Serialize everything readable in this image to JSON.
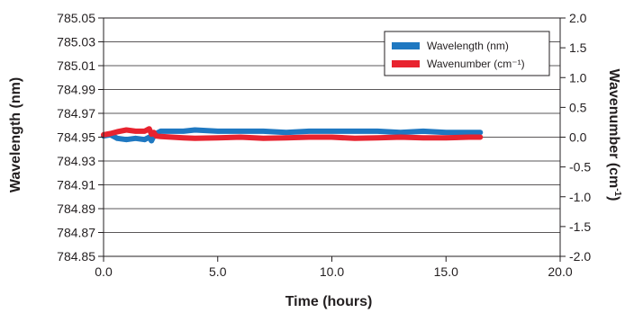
{
  "chart_data": {
    "type": "line",
    "xlabel": "Time (hours)",
    "ylabel": "Wavelength (nm)",
    "y2label_main": "Wavenumber (cm",
    "y2label_sup": "-1",
    "y2label_end": ")",
    "xlim": [
      0,
      20
    ],
    "ylim": [
      784.85,
      785.05
    ],
    "y2lim": [
      -2.0,
      2.0
    ],
    "x_ticks": [
      "0.0",
      "5.0",
      "10.0",
      "15.0",
      "20.0"
    ],
    "y_ticks": [
      "784.85",
      "784.87",
      "784.89",
      "784.91",
      "784.93",
      "784.95",
      "784.97",
      "784.99",
      "785.01",
      "785.03",
      "785.05"
    ],
    "y2_ticks": [
      "-2.0",
      "-1.5",
      "-1.0",
      "-0.5",
      "0.0",
      "0.5",
      "1.0",
      "1.5",
      "2.0"
    ],
    "grid": "horizontal",
    "legend_position": "top-right",
    "series": [
      {
        "name": "Wavelength (nm)",
        "axis": "left",
        "color": "#1f78c1",
        "x": [
          0.0,
          0.3,
          0.6,
          1.0,
          1.4,
          1.8,
          2.0,
          2.1,
          2.2,
          2.3,
          2.5,
          3.0,
          3.5,
          4.0,
          5.0,
          6.0,
          7.0,
          8.0,
          9.0,
          10.0,
          11.0,
          12.0,
          13.0,
          14.0,
          15.0,
          16.0,
          16.5
        ],
        "y": [
          784.951,
          784.952,
          784.949,
          784.948,
          784.949,
          784.948,
          784.95,
          784.947,
          784.951,
          784.953,
          784.955,
          784.955,
          784.955,
          784.956,
          784.955,
          784.955,
          784.955,
          784.954,
          784.955,
          784.955,
          784.955,
          784.955,
          784.954,
          784.955,
          784.954,
          784.954,
          784.954
        ]
      },
      {
        "name": "Wavenumber (cm⁻¹)",
        "axis": "right",
        "color": "#e8232f",
        "x": [
          0.0,
          0.3,
          0.6,
          1.0,
          1.4,
          1.8,
          2.0,
          2.1,
          2.2,
          2.3,
          2.5,
          3.0,
          3.5,
          4.0,
          5.0,
          6.0,
          7.0,
          8.0,
          9.0,
          10.0,
          11.0,
          12.0,
          13.0,
          14.0,
          15.0,
          16.0,
          16.5
        ],
        "y": [
          0.04,
          0.06,
          0.09,
          0.12,
          0.1,
          0.1,
          0.14,
          0.05,
          0.08,
          0.02,
          0.01,
          0.0,
          -0.01,
          -0.02,
          -0.01,
          0.0,
          -0.02,
          -0.01,
          0.0,
          0.0,
          -0.02,
          -0.01,
          0.0,
          -0.01,
          -0.01,
          0.0,
          0.0
        ]
      }
    ]
  }
}
